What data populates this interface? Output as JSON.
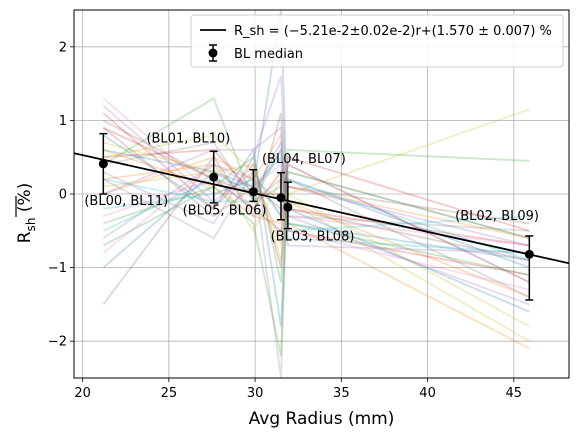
{
  "chart_data": {
    "type": "line",
    "xlabel": "Avg Radius (mm)",
    "ylabel": "R_sh (%)",
    "xlim": [
      19.5,
      48.2
    ],
    "ylim": [
      -2.5,
      2.5
    ],
    "xticks": [
      20,
      25,
      30,
      35,
      40,
      45
    ],
    "yticks": [
      -2,
      -1,
      0,
      1,
      2
    ],
    "grid": true,
    "legend_position": "top-right",
    "fit": {
      "name": "R_sh = (−5.21e-2±0.02e-2)r+(1.570 ± 0.007) %",
      "slope": -0.0521,
      "intercept": 1.57,
      "color": "#000000"
    },
    "median_series": {
      "name": "BL median",
      "points": [
        {
          "x": 21.2,
          "y": 0.41,
          "err_up": 0.41,
          "err_down": 0.41
        },
        {
          "x": 27.6,
          "y": 0.23,
          "err_up": 0.35,
          "err_down": 0.35
        },
        {
          "x": 29.9,
          "y": 0.03,
          "err_up": 0.3,
          "err_down": 0.13
        },
        {
          "x": 31.5,
          "y": -0.05,
          "err_up": 0.34,
          "err_down": 0.3
        },
        {
          "x": 31.9,
          "y": -0.18,
          "err_up": 0.34,
          "err_down": 0.29
        },
        {
          "x": 45.9,
          "y": -0.82,
          "err_up": 0.25,
          "err_down": 0.62
        }
      ]
    },
    "annotations": [
      {
        "text": "(BL00, BL11)",
        "x": 20.1,
        "y": -0.15
      },
      {
        "text": "(BL01, BL10)",
        "x": 23.7,
        "y": 0.7
      },
      {
        "text": "(BL05, BL06)",
        "x": 25.8,
        "y": -0.28
      },
      {
        "text": "(BL04, BL07)",
        "x": 30.4,
        "y": 0.42
      },
      {
        "text": "(BL03, BL08)",
        "x": 30.9,
        "y": -0.63
      },
      {
        "text": "(BL02, BL09)",
        "x": 41.6,
        "y": -0.35
      }
    ],
    "background_x": [
      21.2,
      27.6,
      29.9,
      31.5,
      31.9,
      45.9
    ],
    "background_lines": [
      {
        "color": "#1f77b4",
        "y": [
          0.6,
          0.3,
          0.1,
          2.5,
          -0.4,
          -0.9
        ]
      },
      {
        "color": "#ff7f0e",
        "y": [
          0.2,
          0.4,
          -0.2,
          0.3,
          -0.1,
          -1.4
        ]
      },
      {
        "color": "#2ca02c",
        "y": [
          -0.4,
          0.1,
          0.5,
          -1.2,
          0.3,
          -0.6
        ]
      },
      {
        "color": "#d62728",
        "y": [
          0.9,
          0.2,
          0.0,
          0.6,
          -0.5,
          -1.1
        ]
      },
      {
        "color": "#9467bd",
        "y": [
          1.2,
          -0.1,
          0.3,
          -0.3,
          0.1,
          -0.7
        ]
      },
      {
        "color": "#8c564b",
        "y": [
          -1.5,
          0.5,
          -0.3,
          1.1,
          -0.2,
          -0.9
        ]
      },
      {
        "color": "#e377c2",
        "y": [
          1.3,
          0.0,
          0.2,
          -0.6,
          0.4,
          -1.2
        ]
      },
      {
        "color": "#7f7f7f",
        "y": [
          0.4,
          0.7,
          -0.1,
          0.2,
          -0.3,
          -0.5
        ]
      },
      {
        "color": "#bcbd22",
        "y": [
          0.1,
          0.3,
          0.4,
          -0.9,
          0.0,
          1.15
        ]
      },
      {
        "color": "#17becf",
        "y": [
          -0.5,
          0.2,
          0.1,
          0.5,
          -0.6,
          -0.8
        ]
      },
      {
        "color": "#1f77b4",
        "y": [
          0.8,
          -0.2,
          0.6,
          -1.8,
          0.2,
          -1.0
        ]
      },
      {
        "color": "#ff7f0e",
        "y": [
          0.0,
          0.5,
          0.2,
          0.8,
          -0.4,
          -2.1
        ]
      },
      {
        "color": "#2ca02c",
        "y": [
          -0.7,
          0.1,
          -0.4,
          -2.2,
          0.6,
          0.45
        ]
      },
      {
        "color": "#d62728",
        "y": [
          0.5,
          0.6,
          0.0,
          0.0,
          -0.2,
          -0.7
        ]
      },
      {
        "color": "#9467bd",
        "y": [
          0.3,
          -0.4,
          0.5,
          1.6,
          -0.3,
          -1.5
        ]
      },
      {
        "color": "#8c564b",
        "y": [
          1.0,
          0.2,
          -0.2,
          -0.5,
          0.1,
          -0.4
        ]
      },
      {
        "color": "#e377c2",
        "y": [
          -0.8,
          0.4,
          0.1,
          0.4,
          -0.5,
          -1.3
        ]
      },
      {
        "color": "#7f7f7f",
        "y": [
          0.2,
          -0.6,
          0.3,
          -2.5,
          0.3,
          -0.6
        ]
      },
      {
        "color": "#bcbd22",
        "y": [
          0.7,
          0.3,
          -0.5,
          0.2,
          -0.1,
          -2.0
        ]
      },
      {
        "color": "#17becf",
        "y": [
          -0.2,
          0.0,
          0.2,
          -0.3,
          0.2,
          -0.9
        ]
      },
      {
        "color": "#2ca02c",
        "y": [
          0.4,
          1.3,
          -0.1,
          0.1,
          -0.4,
          -1.1
        ]
      },
      {
        "color": "#d62728",
        "y": [
          1.1,
          -0.2,
          0.4,
          -1.0,
          0.5,
          -0.5
        ]
      },
      {
        "color": "#1f77b4",
        "y": [
          -1.0,
          0.3,
          0.0,
          0.7,
          -0.2,
          -1.6
        ]
      },
      {
        "color": "#ff7f0e",
        "y": [
          0.6,
          0.1,
          -0.3,
          -0.4,
          0.1,
          -0.6
        ]
      },
      {
        "color": "#9467bd",
        "y": [
          0.0,
          0.6,
          0.6,
          0.9,
          -0.7,
          -0.8
        ]
      },
      {
        "color": "#8c564b",
        "y": [
          0.9,
          -0.3,
          0.1,
          -0.2,
          0.4,
          -1.2
        ]
      },
      {
        "color": "#e377c2",
        "y": [
          -0.3,
          0.2,
          -0.2,
          0.3,
          -0.3,
          -0.7
        ]
      },
      {
        "color": "#bcbd22",
        "y": [
          0.5,
          0.8,
          0.3,
          -0.7,
          0.0,
          -1.8
        ]
      },
      {
        "color": "#17becf",
        "y": [
          0.2,
          -0.1,
          -0.1,
          0.6,
          -0.5,
          -0.3
        ]
      },
      {
        "color": "#7f7f7f",
        "y": [
          -0.6,
          0.4,
          0.2,
          -0.1,
          0.2,
          -1.4
        ]
      }
    ]
  }
}
